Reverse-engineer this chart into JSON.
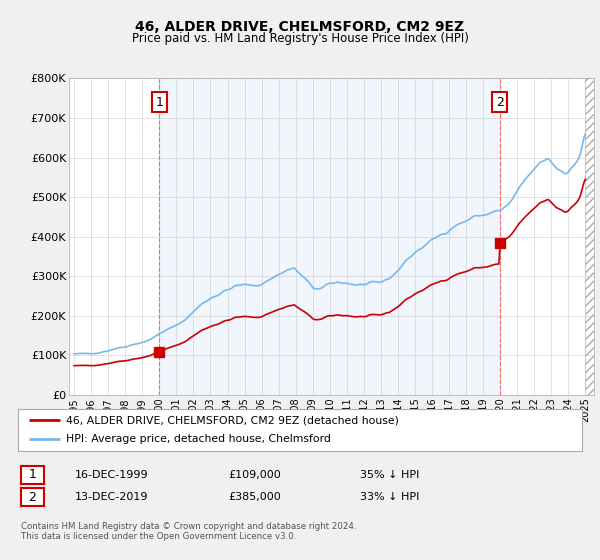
{
  "title": "46, ALDER DRIVE, CHELMSFORD, CM2 9EZ",
  "subtitle": "Price paid vs. HM Land Registry's House Price Index (HPI)",
  "ylim": [
    0,
    800000
  ],
  "yticks": [
    0,
    100000,
    200000,
    300000,
    400000,
    500000,
    600000,
    700000,
    800000
  ],
  "ytick_labels": [
    "£0",
    "£100K",
    "£200K",
    "£300K",
    "£400K",
    "£500K",
    "£600K",
    "£700K",
    "£800K"
  ],
  "hpi_color": "#7ab8e8",
  "price_color": "#cc0000",
  "legend_label_1": "46, ALDER DRIVE, CHELMSFORD, CM2 9EZ (detached house)",
  "legend_label_2": "HPI: Average price, detached house, Chelmsford",
  "transaction_1_label": "1",
  "transaction_1_date": "16-DEC-1999",
  "transaction_1_price": "£109,000",
  "transaction_1_hpi": "35% ↓ HPI",
  "transaction_2_label": "2",
  "transaction_2_date": "13-DEC-2019",
  "transaction_2_price": "£385,000",
  "transaction_2_hpi": "33% ↓ HPI",
  "footer": "Contains HM Land Registry data © Crown copyright and database right 2024.\nThis data is licensed under the Open Government Licence v3.0.",
  "bg_color": "#f0f0f0",
  "plot_bg_color": "#ffffff",
  "grid_color": "#cccccc",
  "shade_color": "#dceeff",
  "point1_x": 1999.96,
  "point1_y": 109000,
  "point2_x": 2019.96,
  "point2_y": 385000,
  "num1_x": 2000.0,
  "num1_y": 740000,
  "num2_x": 2019.96,
  "num2_y": 740000,
  "xlim_left": 1994.7,
  "xlim_right": 2025.5,
  "hatch_start": 2025.0
}
